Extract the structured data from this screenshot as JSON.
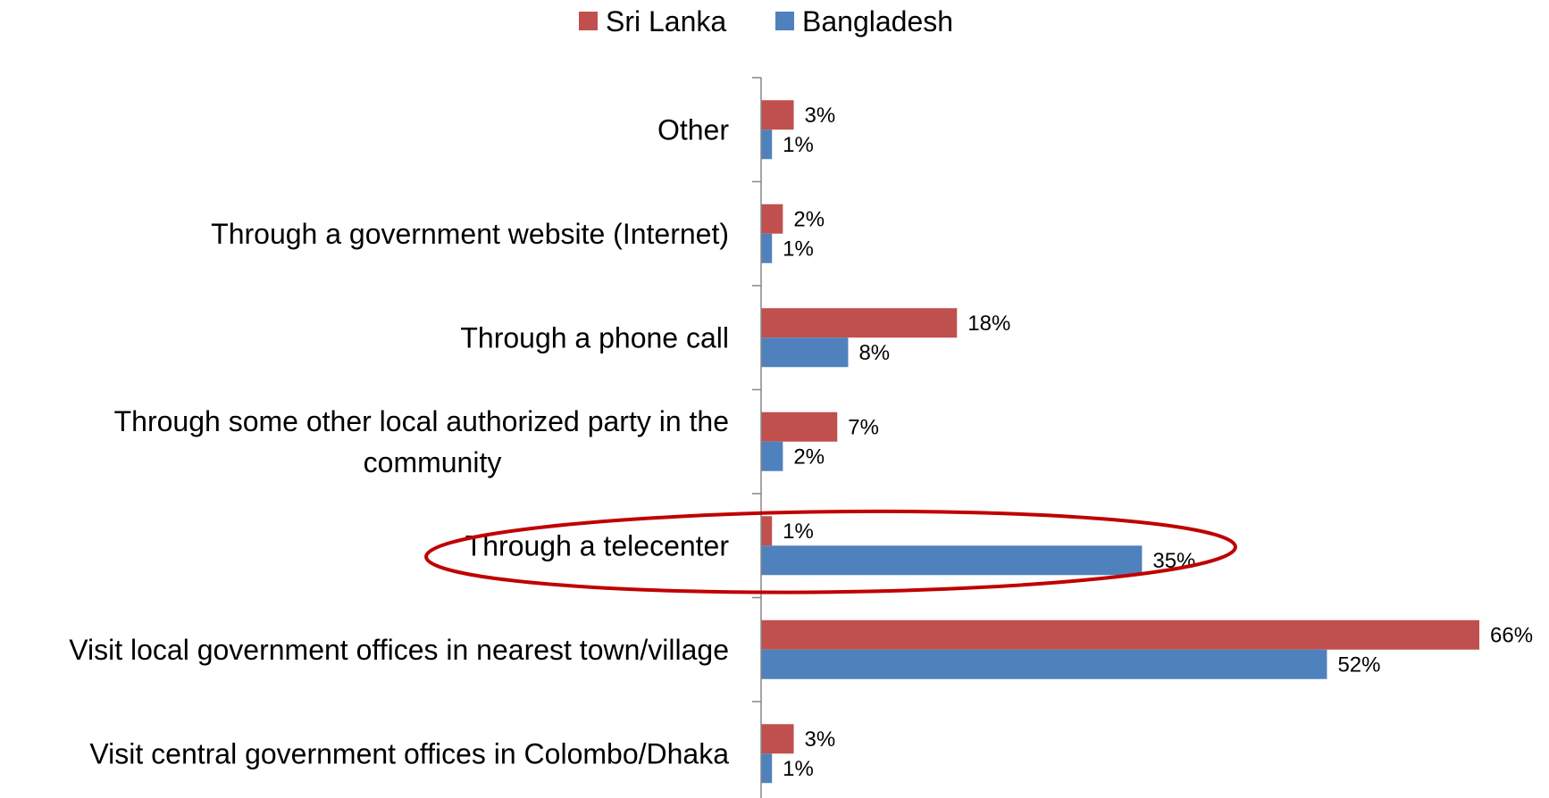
{
  "chart_data": {
    "type": "bar",
    "orientation": "horizontal",
    "categories": [
      [
        "Other"
      ],
      [
        "Through a government website (Internet)"
      ],
      [
        "Through a phone call"
      ],
      [
        "Through some other local authorized party in the",
        "community"
      ],
      [
        "Through a telecenter"
      ],
      [
        "Visit local government offices in nearest town/village"
      ],
      [
        "Visit central government offices in Colombo/Dhaka"
      ]
    ],
    "series": [
      {
        "name": "Sri Lanka",
        "color": "#C0504D",
        "values": [
          3,
          2,
          18,
          7,
          1,
          66,
          3
        ],
        "labels": [
          "3%",
          "2%",
          "18%",
          "7%",
          "1%",
          "66%",
          "3%"
        ]
      },
      {
        "name": "Bangladesh",
        "color": "#4F81BD",
        "values": [
          1,
          1,
          8,
          2,
          35,
          52,
          1
        ],
        "labels": [
          "1%",
          "1%",
          "8%",
          "2%",
          "35%",
          "52%",
          "1%"
        ]
      }
    ],
    "xlim": [
      0,
      66
    ],
    "legend": "top-center",
    "grid": false,
    "highlight": {
      "category": "Through a telecenter",
      "shape": "ellipse",
      "color": "#C00000"
    }
  }
}
